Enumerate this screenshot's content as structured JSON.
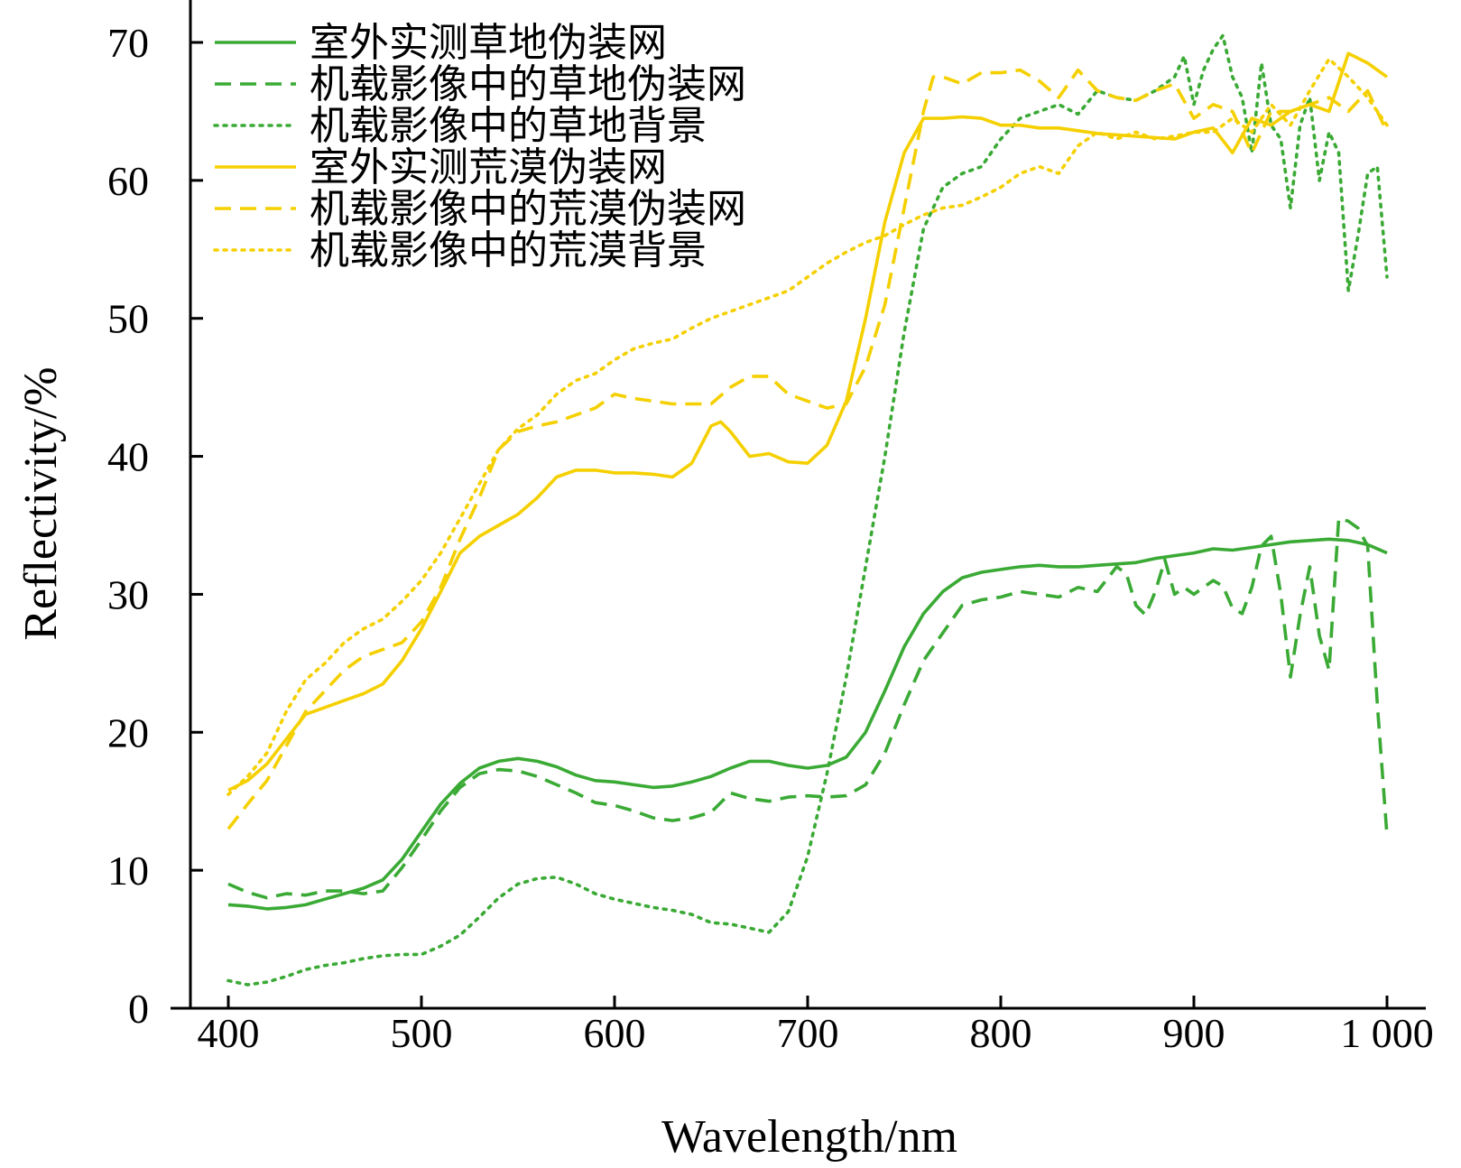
{
  "chart_data": {
    "type": "line",
    "title": "",
    "xlabel": "Wavelength/nm",
    "ylabel": "Reflectivity/%",
    "xlim": [
      380,
      1010
    ],
    "ylim": [
      0,
      72
    ],
    "xticks": [
      400,
      500,
      600,
      700,
      800,
      900,
      1000
    ],
    "xtick_labels": [
      "400",
      "500",
      "600",
      "700",
      "800",
      "900",
      "1 000"
    ],
    "yticks": [
      0,
      10,
      20,
      30,
      40,
      50,
      60,
      70
    ],
    "ytick_labels": [
      "0",
      "10",
      "20",
      "30",
      "40",
      "50",
      "60",
      "70"
    ],
    "grid": false,
    "legend": "top-left",
    "series": [
      {
        "name": "室外实测草地伪装网",
        "color": "#3aaa35",
        "style": "solid",
        "x": [
          400,
          410,
          420,
          430,
          440,
          450,
          460,
          470,
          480,
          490,
          500,
          510,
          520,
          530,
          540,
          550,
          560,
          570,
          580,
          590,
          600,
          610,
          620,
          630,
          640,
          650,
          660,
          670,
          680,
          690,
          700,
          710,
          720,
          730,
          740,
          750,
          760,
          770,
          780,
          790,
          800,
          810,
          820,
          830,
          840,
          850,
          860,
          870,
          880,
          890,
          900,
          910,
          920,
          930,
          940,
          950,
          960,
          970,
          980,
          990,
          1000
        ],
        "y": [
          7.5,
          7.4,
          7.2,
          7.3,
          7.5,
          7.9,
          8.3,
          8.7,
          9.3,
          10.8,
          12.8,
          14.8,
          16.3,
          17.4,
          17.9,
          18.1,
          17.9,
          17.5,
          16.9,
          16.5,
          16.4,
          16.2,
          16.0,
          16.1,
          16.4,
          16.8,
          17.4,
          17.9,
          17.9,
          17.6,
          17.4,
          17.6,
          18.2,
          20.0,
          23.0,
          26.2,
          28.6,
          30.2,
          31.2,
          31.6,
          31.8,
          32.0,
          32.1,
          32.0,
          32.0,
          32.1,
          32.2,
          32.3,
          32.6,
          32.8,
          33.0,
          33.3,
          33.2,
          33.4,
          33.6,
          33.8,
          33.9,
          34.0,
          33.9,
          33.6,
          33.0
        ]
      },
      {
        "name": "机载影像中的草地伪装网",
        "color": "#3aaa35",
        "style": "dashed",
        "x": [
          400,
          410,
          420,
          430,
          440,
          450,
          460,
          470,
          480,
          490,
          500,
          510,
          520,
          530,
          540,
          550,
          560,
          570,
          580,
          590,
          600,
          610,
          620,
          630,
          640,
          650,
          660,
          670,
          680,
          690,
          700,
          710,
          720,
          730,
          740,
          750,
          760,
          770,
          780,
          790,
          800,
          810,
          820,
          830,
          840,
          850,
          860,
          865,
          870,
          875,
          880,
          885,
          890,
          895,
          900,
          910,
          915,
          920,
          925,
          930,
          935,
          940,
          945,
          950,
          955,
          960,
          965,
          970,
          975,
          980,
          985,
          990,
          995,
          1000
        ],
        "y": [
          9.0,
          8.4,
          8.0,
          8.3,
          8.2,
          8.5,
          8.5,
          8.3,
          8.5,
          10.2,
          12.2,
          14.3,
          16.0,
          17.0,
          17.3,
          17.2,
          16.8,
          16.2,
          15.6,
          14.9,
          14.7,
          14.3,
          13.8,
          13.6,
          13.8,
          14.2,
          15.6,
          15.2,
          15.0,
          15.3,
          15.4,
          15.3,
          15.4,
          16.2,
          18.5,
          22.0,
          25.2,
          27.2,
          29.2,
          29.6,
          29.8,
          30.2,
          30.0,
          29.8,
          30.5,
          30.2,
          32.0,
          31.5,
          29.2,
          28.5,
          30.2,
          32.5,
          30.0,
          30.5,
          30.0,
          31.0,
          30.6,
          29.0,
          28.6,
          30.5,
          33.5,
          34.2,
          30.0,
          24.0,
          28.5,
          32.0,
          27.0,
          24.5,
          35.5,
          35.3,
          34.8,
          33.5,
          22.0,
          12.5
        ]
      },
      {
        "name": "机载影像中的草地背景",
        "color": "#3aaa35",
        "style": "dotted",
        "x": [
          400,
          410,
          420,
          430,
          440,
          450,
          460,
          470,
          480,
          490,
          500,
          510,
          520,
          530,
          540,
          550,
          560,
          570,
          580,
          590,
          600,
          610,
          620,
          630,
          640,
          650,
          660,
          670,
          680,
          690,
          700,
          710,
          720,
          730,
          740,
          750,
          760,
          770,
          780,
          790,
          800,
          810,
          820,
          830,
          840,
          850,
          860,
          870,
          880,
          890,
          895,
          900,
          905,
          910,
          915,
          920,
          925,
          930,
          935,
          940,
          945,
          950,
          955,
          960,
          965,
          970,
          975,
          980,
          985,
          990,
          995,
          1000
        ],
        "y": [
          2.0,
          1.7,
          1.9,
          2.3,
          2.8,
          3.1,
          3.3,
          3.6,
          3.8,
          3.9,
          3.9,
          4.5,
          5.3,
          6.6,
          8.0,
          9.0,
          9.4,
          9.5,
          9.0,
          8.3,
          7.9,
          7.6,
          7.3,
          7.1,
          6.8,
          6.2,
          6.1,
          5.8,
          5.5,
          7.0,
          11.0,
          17.0,
          24.0,
          32.0,
          40.0,
          49.0,
          56.5,
          59.5,
          60.5,
          61.0,
          63.0,
          64.5,
          65.0,
          65.5,
          64.8,
          66.5,
          66.0,
          65.8,
          66.5,
          67.5,
          69.0,
          65.5,
          68.0,
          69.5,
          70.5,
          67.5,
          66.0,
          62.0,
          68.5,
          64.0,
          63.0,
          58.0,
          64.0,
          66.0,
          60.0,
          63.5,
          62.0,
          52.0,
          56.0,
          60.5,
          61.0,
          53.0
        ]
      },
      {
        "name": "室外实测荒漠伪装网",
        "color": "#f5d000",
        "style": "solid",
        "x": [
          400,
          410,
          420,
          430,
          440,
          450,
          460,
          470,
          480,
          490,
          500,
          510,
          520,
          530,
          540,
          550,
          560,
          570,
          580,
          590,
          600,
          610,
          620,
          630,
          640,
          650,
          655,
          660,
          670,
          680,
          690,
          700,
          710,
          720,
          730,
          740,
          750,
          760,
          770,
          780,
          790,
          800,
          810,
          820,
          830,
          840,
          850,
          860,
          870,
          880,
          890,
          900,
          910,
          920,
          930,
          940,
          950,
          960,
          970,
          980,
          990,
          1000
        ],
        "y": [
          15.8,
          16.5,
          17.7,
          19.5,
          21.3,
          21.8,
          22.3,
          22.8,
          23.5,
          25.2,
          27.5,
          30.2,
          33.0,
          34.2,
          35.0,
          35.8,
          37.0,
          38.5,
          39.0,
          39.0,
          38.8,
          38.8,
          38.7,
          38.5,
          39.5,
          42.2,
          42.5,
          41.8,
          40.0,
          40.2,
          39.6,
          39.5,
          40.8,
          44.0,
          50.0,
          57.0,
          62.0,
          64.5,
          64.5,
          64.6,
          64.5,
          64.0,
          64.0,
          63.8,
          63.8,
          63.6,
          63.4,
          63.3,
          63.2,
          63.1,
          63.0,
          63.5,
          63.8,
          62.0,
          64.5,
          64.0,
          65.0,
          65.5,
          65.0,
          69.2,
          68.5,
          67.5
        ]
      },
      {
        "name": "机载影像中的荒漠伪装网",
        "color": "#f5d000",
        "style": "dashed",
        "x": [
          400,
          410,
          420,
          430,
          440,
          450,
          460,
          470,
          480,
          490,
          500,
          510,
          520,
          530,
          540,
          550,
          560,
          570,
          580,
          590,
          600,
          610,
          620,
          630,
          640,
          650,
          660,
          670,
          680,
          690,
          700,
          710,
          720,
          730,
          740,
          750,
          760,
          765,
          770,
          780,
          790,
          800,
          810,
          820,
          830,
          840,
          850,
          860,
          870,
          880,
          890,
          900,
          910,
          920,
          930,
          940,
          950,
          960,
          970,
          980,
          990,
          1000
        ],
        "y": [
          13.0,
          14.8,
          16.5,
          19.0,
          21.5,
          23.0,
          24.5,
          25.5,
          26.0,
          26.5,
          28.0,
          30.5,
          34.0,
          37.0,
          40.5,
          41.8,
          42.2,
          42.5,
          43.0,
          43.5,
          44.5,
          44.2,
          44.0,
          43.8,
          43.8,
          43.8,
          45.0,
          45.8,
          45.8,
          44.5,
          44.0,
          43.5,
          43.8,
          46.5,
          51.0,
          58.0,
          65.0,
          67.5,
          67.5,
          67.0,
          67.8,
          67.8,
          68.0,
          67.2,
          66.0,
          68.0,
          66.5,
          66.0,
          65.8,
          66.5,
          67.0,
          64.5,
          65.5,
          65.0,
          62.0,
          65.0,
          65.0,
          65.5,
          66.0,
          65.0,
          66.5,
          63.5
        ]
      },
      {
        "name": "机载影像中的荒漠背景",
        "color": "#f5d000",
        "style": "dotted",
        "x": [
          400,
          410,
          420,
          430,
          440,
          450,
          460,
          470,
          480,
          490,
          500,
          510,
          520,
          530,
          540,
          550,
          560,
          570,
          580,
          590,
          600,
          610,
          620,
          630,
          640,
          650,
          660,
          670,
          680,
          690,
          700,
          710,
          720,
          730,
          740,
          750,
          760,
          770,
          780,
          790,
          800,
          810,
          820,
          830,
          840,
          850,
          860,
          870,
          880,
          890,
          900,
          910,
          920,
          930,
          940,
          950,
          960,
          970,
          980,
          990,
          1000
        ],
        "y": [
          15.5,
          16.8,
          18.5,
          21.5,
          23.8,
          25.0,
          26.5,
          27.5,
          28.2,
          29.5,
          31.0,
          33.0,
          35.5,
          38.0,
          40.5,
          42.0,
          43.0,
          44.5,
          45.5,
          46.0,
          47.0,
          47.8,
          48.2,
          48.5,
          49.3,
          50.0,
          50.5,
          51.0,
          51.5,
          52.0,
          53.0,
          54.0,
          54.8,
          55.5,
          56.0,
          56.8,
          57.5,
          58.0,
          58.2,
          58.8,
          59.5,
          60.5,
          61.0,
          60.5,
          62.5,
          63.5,
          63.0,
          63.5,
          63.0,
          63.2,
          63.5,
          63.5,
          64.5,
          63.5,
          65.5,
          64.0,
          66.5,
          68.8,
          67.5,
          66.0,
          64.0
        ]
      }
    ]
  }
}
